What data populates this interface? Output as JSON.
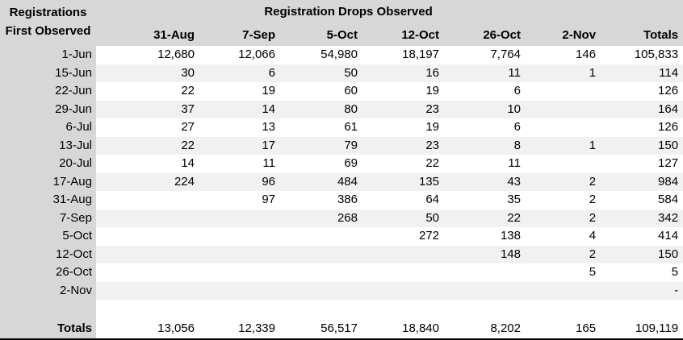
{
  "table": {
    "corner": {
      "line1": "Registrations",
      "line2": "First Observed"
    },
    "group_title": "Registration Drops Observed",
    "columns": [
      "31-Aug",
      "7-Sep",
      "5-Oct",
      "12-Oct",
      "26-Oct",
      "2-Nov",
      "Totals"
    ],
    "rows": [
      {
        "label": "1-Jun",
        "values": [
          "12,680",
          "12,066",
          "54,980",
          "18,197",
          "7,764",
          "146",
          "105,833"
        ]
      },
      {
        "label": "15-Jun",
        "values": [
          "30",
          "6",
          "50",
          "16",
          "11",
          "1",
          "114"
        ]
      },
      {
        "label": "22-Jun",
        "values": [
          "22",
          "19",
          "60",
          "19",
          "6",
          "",
          "126"
        ]
      },
      {
        "label": "29-Jun",
        "values": [
          "37",
          "14",
          "80",
          "23",
          "10",
          "",
          "164"
        ]
      },
      {
        "label": "6-Jul",
        "values": [
          "27",
          "13",
          "61",
          "19",
          "6",
          "",
          "126"
        ]
      },
      {
        "label": "13-Jul",
        "values": [
          "22",
          "17",
          "79",
          "23",
          "8",
          "1",
          "150"
        ]
      },
      {
        "label": "20-Jul",
        "values": [
          "14",
          "11",
          "69",
          "22",
          "11",
          "",
          "127"
        ]
      },
      {
        "label": "17-Aug",
        "values": [
          "224",
          "96",
          "484",
          "135",
          "43",
          "2",
          "984"
        ]
      },
      {
        "label": "31-Aug",
        "values": [
          "",
          "97",
          "386",
          "64",
          "35",
          "2",
          "584"
        ]
      },
      {
        "label": "7-Sep",
        "values": [
          "",
          "",
          "268",
          "50",
          "22",
          "2",
          "342"
        ]
      },
      {
        "label": "5-Oct",
        "values": [
          "",
          "",
          "",
          "272",
          "138",
          "4",
          "414"
        ]
      },
      {
        "label": "12-Oct",
        "values": [
          "",
          "",
          "",
          "",
          "148",
          "2",
          "150"
        ]
      },
      {
        "label": "26-Oct",
        "values": [
          "",
          "",
          "",
          "",
          "",
          "5",
          "5"
        ]
      },
      {
        "label": "2-Nov",
        "values": [
          "",
          "",
          "",
          "",
          "",
          "",
          "-"
        ]
      }
    ],
    "spacer_row": {
      "label": "",
      "values": [
        "",
        "",
        "",
        "",
        "",
        "",
        ""
      ]
    },
    "totals": {
      "label": "Totals",
      "values": [
        "13,056",
        "12,339",
        "56,517",
        "18,840",
        "8,202",
        "165",
        "109,119"
      ]
    }
  },
  "colors": {
    "header_bg": "#d7d7d7",
    "stripe_bg": "#f1f1f1",
    "text": "#000000",
    "bottom_rule": "#000000"
  },
  "chart_data": {
    "type": "table",
    "title": "Registration Drops Observed",
    "row_header": "Registrations First Observed",
    "columns": [
      "31-Aug",
      "7-Sep",
      "5-Oct",
      "12-Oct",
      "26-Oct",
      "2-Nov",
      "Totals"
    ],
    "rows": [
      {
        "label": "1-Jun",
        "values": [
          12680,
          12066,
          54980,
          18197,
          7764,
          146,
          105833
        ]
      },
      {
        "label": "15-Jun",
        "values": [
          30,
          6,
          50,
          16,
          11,
          1,
          114
        ]
      },
      {
        "label": "22-Jun",
        "values": [
          22,
          19,
          60,
          19,
          6,
          null,
          126
        ]
      },
      {
        "label": "29-Jun",
        "values": [
          37,
          14,
          80,
          23,
          10,
          null,
          164
        ]
      },
      {
        "label": "6-Jul",
        "values": [
          27,
          13,
          61,
          19,
          6,
          null,
          126
        ]
      },
      {
        "label": "13-Jul",
        "values": [
          22,
          17,
          79,
          23,
          8,
          1,
          150
        ]
      },
      {
        "label": "20-Jul",
        "values": [
          14,
          11,
          69,
          22,
          11,
          null,
          127
        ]
      },
      {
        "label": "17-Aug",
        "values": [
          224,
          96,
          484,
          135,
          43,
          2,
          984
        ]
      },
      {
        "label": "31-Aug",
        "values": [
          null,
          97,
          386,
          64,
          35,
          2,
          584
        ]
      },
      {
        "label": "7-Sep",
        "values": [
          null,
          null,
          268,
          50,
          22,
          2,
          342
        ]
      },
      {
        "label": "5-Oct",
        "values": [
          null,
          null,
          null,
          272,
          138,
          4,
          414
        ]
      },
      {
        "label": "12-Oct",
        "values": [
          null,
          null,
          null,
          null,
          148,
          2,
          150
        ]
      },
      {
        "label": "26-Oct",
        "values": [
          null,
          null,
          null,
          null,
          null,
          5,
          5
        ]
      },
      {
        "label": "2-Nov",
        "values": [
          null,
          null,
          null,
          null,
          null,
          null,
          null
        ]
      }
    ],
    "totals": {
      "label": "Totals",
      "values": [
        13056,
        12339,
        56517,
        18840,
        8202,
        165,
        109119
      ]
    }
  }
}
